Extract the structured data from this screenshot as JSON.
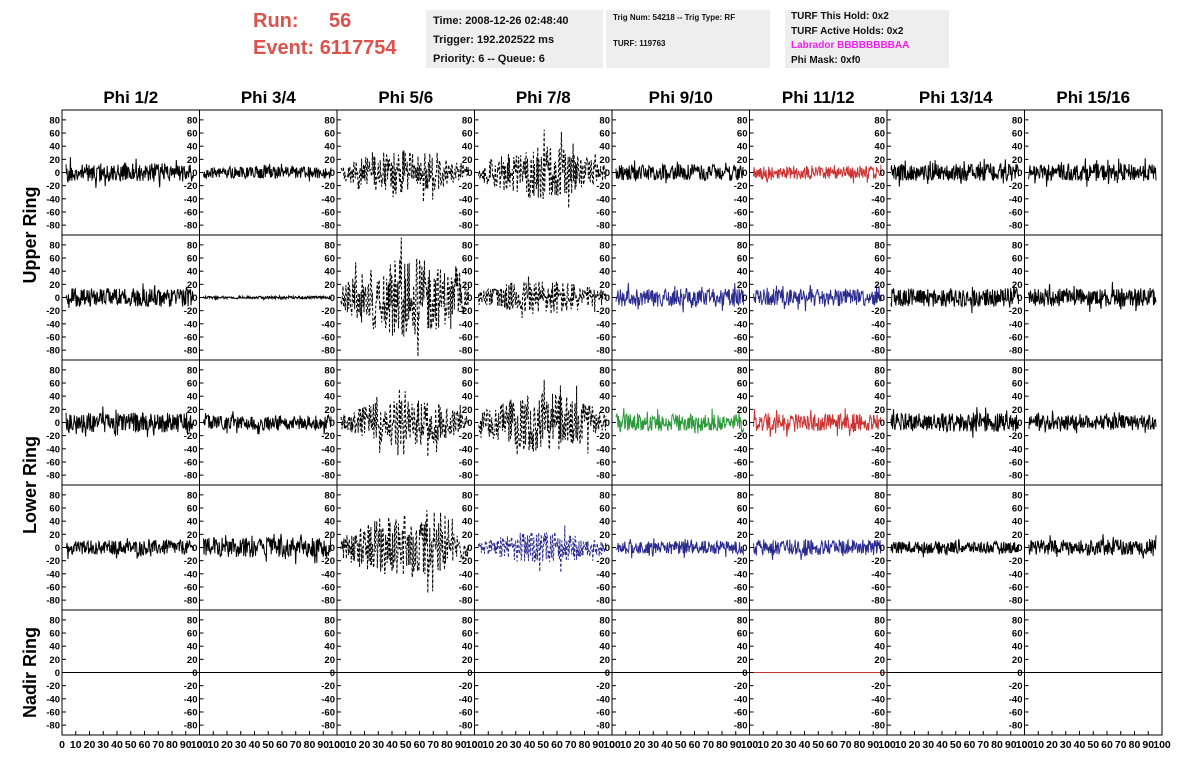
{
  "header": {
    "run_label": "Run:",
    "run_value": "56",
    "event_label": "Event:",
    "event_value": "6117754",
    "time": "Time: 2008-12-26 02:48:40",
    "trigger": "Trigger: 192.202522 ms",
    "priority": "Priority: 6 -- Queue: 6",
    "trig_num": "Trig Num: 54218 -- Trig Type: RF",
    "turf": "TURF: 119763",
    "turf_this_hold": "TURF This Hold: 0x2",
    "turf_active_holds": "TURF Active Holds: 0x2",
    "labrador": "Labrador BBBBBBBBAA",
    "phi_mask": "Phi Mask: 0xf0",
    "labrador_color": "#ee22ee"
  },
  "chart_data": {
    "type": "line",
    "columns": [
      "Phi 1/2",
      "Phi 3/4",
      "Phi 5/6",
      "Phi 7/8",
      "Phi 9/10",
      "Phi 11/12",
      "Phi 13/14",
      "Phi 15/16"
    ],
    "rows": [
      "Upper Ring",
      "Upper Ring",
      "Lower Ring",
      "Lower Ring",
      "Nadir Ring"
    ],
    "row_labels": [
      {
        "text": "Upper Ring",
        "rows": [
          0,
          1
        ]
      },
      {
        "text": "Lower Ring",
        "rows": [
          2,
          3
        ]
      },
      {
        "text": "Nadir Ring",
        "rows": [
          4
        ]
      }
    ],
    "ylim": [
      -95,
      95
    ],
    "yticks": [
      -80,
      -60,
      -40,
      -20,
      0,
      20,
      40,
      60,
      80
    ],
    "xlim": [
      0,
      100
    ],
    "xticks": [
      0,
      10,
      20,
      30,
      40,
      50,
      60,
      70,
      80,
      90,
      100
    ],
    "colors": {
      "k": "#000000",
      "r": "#cc3333",
      "b": "#2b2b8f",
      "g": "#2a9a3a"
    },
    "grid": false,
    "panels": [
      {
        "row": 0,
        "col": 0,
        "color": "k",
        "dashed": false,
        "amp": 14,
        "seed": 11
      },
      {
        "row": 0,
        "col": 1,
        "color": "k",
        "dashed": false,
        "amp": 9,
        "seed": 12
      },
      {
        "row": 0,
        "col": 2,
        "color": "k",
        "dashed": true,
        "amp": 22,
        "seed": 13
      },
      {
        "row": 0,
        "col": 3,
        "color": "k",
        "dashed": true,
        "amp": 26,
        "seed": 14
      },
      {
        "row": 0,
        "col": 4,
        "color": "k",
        "dashed": false,
        "amp": 12,
        "seed": 15
      },
      {
        "row": 0,
        "col": 5,
        "color": "r",
        "dashed": false,
        "amp": 10,
        "seed": 16
      },
      {
        "row": 0,
        "col": 6,
        "color": "k",
        "dashed": false,
        "amp": 13,
        "seed": 17
      },
      {
        "row": 0,
        "col": 7,
        "color": "k",
        "dashed": false,
        "amp": 13,
        "seed": 18
      },
      {
        "row": 1,
        "col": 0,
        "color": "k",
        "dashed": false,
        "amp": 14,
        "seed": 21
      },
      {
        "row": 1,
        "col": 1,
        "color": "k",
        "dashed": false,
        "amp": 2,
        "seed": 22
      },
      {
        "row": 1,
        "col": 2,
        "color": "k",
        "dashed": true,
        "amp": 40,
        "seed": 23
      },
      {
        "row": 1,
        "col": 3,
        "color": "k",
        "dashed": true,
        "amp": 18,
        "seed": 24
      },
      {
        "row": 1,
        "col": 4,
        "color": "b",
        "dashed": false,
        "amp": 14,
        "seed": 25
      },
      {
        "row": 1,
        "col": 5,
        "color": "b",
        "dashed": false,
        "amp": 13,
        "seed": 26
      },
      {
        "row": 1,
        "col": 6,
        "color": "k",
        "dashed": false,
        "amp": 14,
        "seed": 27
      },
      {
        "row": 1,
        "col": 7,
        "color": "k",
        "dashed": false,
        "amp": 14,
        "seed": 28
      },
      {
        "row": 2,
        "col": 0,
        "color": "k",
        "dashed": false,
        "amp": 15,
        "seed": 31
      },
      {
        "row": 2,
        "col": 1,
        "color": "k",
        "dashed": false,
        "amp": 11,
        "seed": 32
      },
      {
        "row": 2,
        "col": 2,
        "color": "k",
        "dashed": true,
        "amp": 24,
        "seed": 33
      },
      {
        "row": 2,
        "col": 3,
        "color": "k",
        "dashed": true,
        "amp": 30,
        "seed": 34
      },
      {
        "row": 2,
        "col": 4,
        "color": "g",
        "dashed": false,
        "amp": 13,
        "seed": 35
      },
      {
        "row": 2,
        "col": 5,
        "color": "r",
        "dashed": false,
        "amp": 13,
        "seed": 36
      },
      {
        "row": 2,
        "col": 6,
        "color": "k",
        "dashed": false,
        "amp": 14,
        "seed": 37
      },
      {
        "row": 2,
        "col": 7,
        "color": "k",
        "dashed": false,
        "amp": 11,
        "seed": 38
      },
      {
        "row": 3,
        "col": 0,
        "color": "k",
        "dashed": false,
        "amp": 11,
        "seed": 41
      },
      {
        "row": 3,
        "col": 1,
        "color": "k",
        "dashed": false,
        "amp": 15,
        "seed": 42
      },
      {
        "row": 3,
        "col": 2,
        "color": "k",
        "dashed": true,
        "amp": 32,
        "seed": 43
      },
      {
        "row": 3,
        "col": 3,
        "color": "b",
        "dashed": true,
        "amp": 16,
        "seed": 44
      },
      {
        "row": 3,
        "col": 4,
        "color": "b",
        "dashed": false,
        "amp": 10,
        "seed": 45
      },
      {
        "row": 3,
        "col": 5,
        "color": "b",
        "dashed": false,
        "amp": 12,
        "seed": 46
      },
      {
        "row": 3,
        "col": 6,
        "color": "k",
        "dashed": false,
        "amp": 9,
        "seed": 47
      },
      {
        "row": 3,
        "col": 7,
        "color": "k",
        "dashed": false,
        "amp": 12,
        "seed": 48
      },
      {
        "row": 4,
        "col": 0,
        "color": "k",
        "dashed": false,
        "amp": 0,
        "seed": 51
      },
      {
        "row": 4,
        "col": 1,
        "color": "k",
        "dashed": false,
        "amp": 0,
        "seed": 52
      },
      {
        "row": 4,
        "col": 2,
        "color": "k",
        "dashed": false,
        "amp": 0,
        "seed": 53
      },
      {
        "row": 4,
        "col": 3,
        "color": "k",
        "dashed": false,
        "amp": 0,
        "seed": 54
      },
      {
        "row": 4,
        "col": 4,
        "color": "k",
        "dashed": false,
        "amp": 0,
        "seed": 55
      },
      {
        "row": 4,
        "col": 5,
        "color": "r",
        "dashed": false,
        "amp": 0,
        "seed": 56
      },
      {
        "row": 4,
        "col": 6,
        "color": "k",
        "dashed": false,
        "amp": 0,
        "seed": 57
      },
      {
        "row": 4,
        "col": 7,
        "color": "k",
        "dashed": false,
        "amp": 0,
        "seed": 58
      }
    ]
  }
}
